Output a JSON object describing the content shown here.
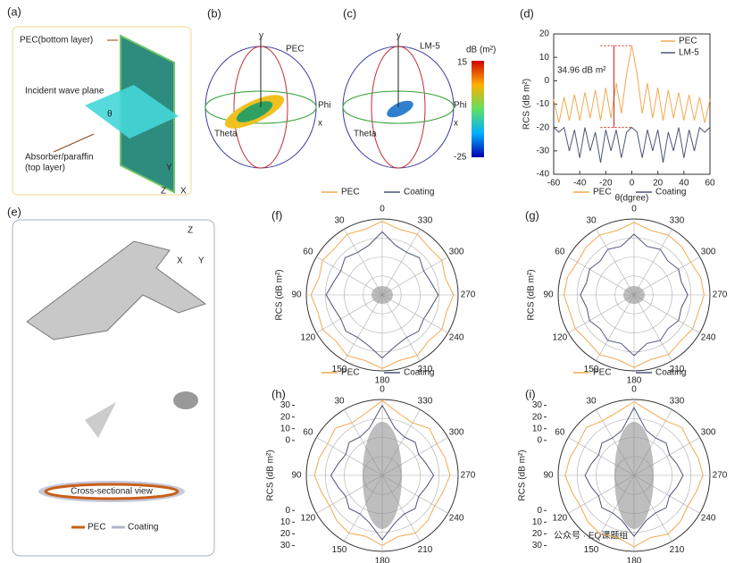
{
  "panel_labels": [
    "(a)",
    "(b)",
    "(c)",
    "(d)",
    "(e)",
    "(f)",
    "(g)",
    "(h)",
    "(i)"
  ],
  "diagram_a": {
    "pec": "PEC(bottom layer)",
    "incident": "Incident wave plane",
    "theta": "θ",
    "absorber": "Absorber/paraffin",
    "absorber2": "(top layer)",
    "axis_y": "Y",
    "axis_z": "Z",
    "axis_x": "X"
  },
  "pattern_b": {
    "axis_y": "y",
    "name": "PEC",
    "phi": "Phi",
    "axis_x": "x",
    "theta": "Theta"
  },
  "pattern_c": {
    "axis_y": "y",
    "name": "LM-5",
    "phi": "Phi",
    "axis_x": "x",
    "theta": "Theta"
  },
  "colorbar": {
    "title": "dB (m²)",
    "max": 15,
    "min": -25
  },
  "jet_e": {
    "axis_z": "Z",
    "axis_x": "X",
    "axis_y": "Y",
    "caption": "Cross-sectional view",
    "legend_pec": "PEC",
    "legend_coating": "Coating"
  },
  "watermark": "公众号 · EQ课题组",
  "chart_data": [
    {
      "type": "line",
      "xlabel": "θ(dgree)",
      "ylabel": "RCS (dB m²)",
      "annotation": "34.96 dB m²",
      "x": [
        -60,
        -56,
        -52,
        -48,
        -44,
        -40,
        -36,
        -32,
        -28,
        -24,
        -20,
        -16,
        -12,
        -8,
        -4,
        0,
        4,
        8,
        12,
        16,
        20,
        24,
        28,
        32,
        36,
        40,
        44,
        48,
        52,
        56,
        60
      ],
      "series": [
        {
          "name": "PEC",
          "color": "#f2a94e",
          "values": [
            -8,
            -18,
            -7,
            -17,
            -6,
            -17,
            -5,
            -16,
            -4,
            -17,
            -3,
            -16,
            -1,
            -14,
            3,
            15,
            3,
            -14,
            -1,
            -16,
            -3,
            -17,
            -4,
            -16,
            -5,
            -17,
            -6,
            -17,
            -7,
            -18,
            -8
          ]
        },
        {
          "name": "LM-5",
          "color": "#4d5470",
          "values": [
            -20,
            -22,
            -20,
            -30,
            -21,
            -33,
            -20,
            -30,
            -22,
            -35,
            -21,
            -30,
            -21,
            -33,
            -22,
            -20,
            -22,
            -33,
            -21,
            -30,
            -21,
            -35,
            -22,
            -30,
            -20,
            -33,
            -21,
            -30,
            -20,
            -22,
            -20
          ]
        }
      ],
      "xlim": [
        -60,
        60
      ],
      "ylim": [
        -40,
        20
      ],
      "xticks": [
        -60,
        -40,
        -20,
        0,
        20,
        40,
        60
      ],
      "yticks": [
        -40,
        -30,
        -20,
        -10,
        0,
        10,
        20
      ],
      "legend": "upper right"
    },
    {
      "type": "polar",
      "ylabel": "RCS (dB m²)",
      "theta": [
        0,
        15,
        30,
        45,
        60,
        75,
        90,
        105,
        120,
        135,
        150,
        165,
        180,
        195,
        210,
        225,
        240,
        255,
        270,
        285,
        300,
        315,
        330,
        345
      ],
      "series": [
        {
          "name": "PEC",
          "color": "#f2a94e",
          "values": [
            33,
            28,
            30,
            27,
            29,
            26,
            31,
            27,
            29,
            26,
            30,
            28,
            33,
            28,
            30,
            26,
            29,
            27,
            31,
            26,
            29,
            27,
            30,
            28
          ]
        },
        {
          "name": "Coating",
          "color": "#4d5478",
          "values": [
            24,
            14,
            12,
            15,
            11,
            13,
            18,
            13,
            11,
            14,
            12,
            15,
            24,
            15,
            12,
            14,
            11,
            13,
            18,
            13,
            11,
            15,
            12,
            14
          ]
        }
      ],
      "rlim": [
        -30,
        35
      ],
      "thetaticks": [
        0,
        30,
        60,
        90,
        120,
        150,
        180,
        210,
        240,
        270,
        300,
        330
      ]
    },
    {
      "type": "polar",
      "ylabel": "RCS (dB m²)",
      "theta": [
        0,
        15,
        30,
        45,
        60,
        75,
        90,
        105,
        120,
        135,
        150,
        165,
        180,
        195,
        210,
        225,
        240,
        255,
        270,
        285,
        300,
        315,
        330,
        345
      ],
      "series": [
        {
          "name": "PEC",
          "color": "#f2a94e",
          "values": [
            32,
            27,
            29,
            28,
            26,
            29,
            30,
            27,
            28,
            26,
            29,
            27,
            32,
            27,
            29,
            26,
            28,
            27,
            30,
            29,
            26,
            28,
            29,
            27
          ]
        },
        {
          "name": "Coating",
          "color": "#4d5478",
          "values": [
            22,
            13,
            15,
            11,
            14,
            12,
            16,
            12,
            14,
            11,
            15,
            13,
            22,
            13,
            15,
            11,
            14,
            12,
            16,
            12,
            14,
            11,
            15,
            13
          ]
        }
      ],
      "rlim": [
        -30,
        35
      ],
      "thetaticks": [
        0,
        30,
        60,
        90,
        120,
        150,
        180,
        210,
        240,
        270,
        300,
        330
      ]
    },
    {
      "type": "polar",
      "ylabel": "RCS (dB m²)",
      "theta": [
        0,
        15,
        30,
        45,
        60,
        75,
        90,
        105,
        120,
        135,
        150,
        165,
        180,
        195,
        210,
        225,
        240,
        255,
        270,
        285,
        300,
        315,
        330,
        345
      ],
      "series": [
        {
          "name": "PEC",
          "color": "#f2a94e",
          "values": [
            34,
            25,
            22,
            27,
            24,
            26,
            28,
            24,
            22,
            25,
            27,
            24,
            30,
            24,
            27,
            25,
            22,
            24,
            28,
            26,
            24,
            27,
            22,
            25
          ]
        },
        {
          "name": "Coating",
          "color": "#4d5478",
          "values": [
            30,
            12,
            8,
            10,
            6,
            9,
            14,
            9,
            6,
            10,
            8,
            12,
            25,
            12,
            8,
            10,
            6,
            9,
            14,
            9,
            6,
            10,
            8,
            12
          ]
        }
      ],
      "rlim": [
        -30,
        35
      ],
      "rticks": [
        0,
        10,
        20,
        30
      ],
      "thetaticks": [
        0,
        30,
        60,
        90,
        120,
        150,
        180,
        210,
        240,
        270,
        300,
        330
      ]
    },
    {
      "type": "polar",
      "ylabel": "RCS (dB m²)",
      "theta": [
        0,
        15,
        30,
        45,
        60,
        75,
        90,
        105,
        120,
        135,
        150,
        165,
        180,
        195,
        210,
        225,
        240,
        255,
        270,
        285,
        300,
        315,
        330,
        345
      ],
      "series": [
        {
          "name": "PEC",
          "color": "#f2a94e",
          "values": [
            33,
            26,
            24,
            28,
            25,
            27,
            29,
            25,
            23,
            26,
            28,
            25,
            31,
            25,
            28,
            26,
            23,
            25,
            29,
            27,
            25,
            28,
            24,
            26
          ]
        },
        {
          "name": "Coating",
          "color": "#4d5478",
          "values": [
            28,
            10,
            7,
            9,
            5,
            8,
            12,
            8,
            5,
            9,
            7,
            10,
            22,
            10,
            7,
            9,
            5,
            8,
            12,
            8,
            5,
            9,
            7,
            10
          ]
        }
      ],
      "rlim": [
        -30,
        35
      ],
      "rticks": [
        0,
        10,
        20,
        30
      ],
      "thetaticks": [
        0,
        30,
        60,
        90,
        120,
        150,
        180,
        210,
        240,
        270,
        300,
        330
      ]
    }
  ]
}
